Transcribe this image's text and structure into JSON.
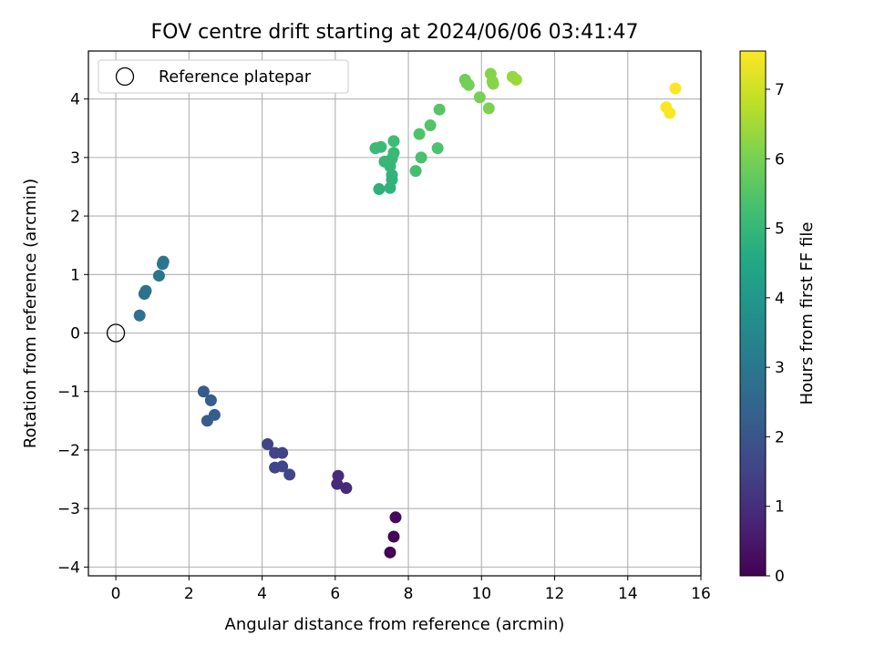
{
  "chart_data": {
    "type": "scatter",
    "title": "FOV centre drift starting at 2024/06/06 03:41:47",
    "xlabel": "Angular distance from reference (arcmin)",
    "ylabel": "Rotation from reference (arcmin)",
    "xlim": [
      -0.75,
      16
    ],
    "ylim": [
      -4.15,
      4.82
    ],
    "xticks": [
      0,
      2,
      4,
      6,
      8,
      10,
      12,
      14,
      16
    ],
    "xtick_labels": [
      "0",
      "2",
      "4",
      "6",
      "8",
      "10",
      "12",
      "14",
      "16"
    ],
    "yticks": [
      -4,
      -3,
      -2,
      -1,
      0,
      1,
      2,
      3,
      4
    ],
    "ytick_labels": [
      "−4",
      "−3",
      "−2",
      "−1",
      "0",
      "1",
      "2",
      "3",
      "4"
    ],
    "grid": true,
    "legend": {
      "location": "upper left",
      "entries": [
        "Reference platepar"
      ]
    },
    "reference_point": {
      "x": 0,
      "y": 0,
      "marker": "open circle"
    },
    "colorbar": {
      "label": "Hours from first FF file",
      "colormap": "viridis",
      "range": [
        0,
        7.55
      ],
      "ticks": [
        0,
        1,
        2,
        3,
        4,
        5,
        6,
        7
      ],
      "tick_labels": [
        "0",
        "1",
        "2",
        "3",
        "4",
        "5",
        "6",
        "7"
      ]
    },
    "points": [
      {
        "x": 7.5,
        "y": -3.75,
        "c": 0.0
      },
      {
        "x": 7.6,
        "y": -3.48,
        "c": 0.1
      },
      {
        "x": 7.65,
        "y": -3.15,
        "c": 0.2
      },
      {
        "x": 6.05,
        "y": -2.58,
        "c": 0.9
      },
      {
        "x": 6.3,
        "y": -2.65,
        "c": 0.9
      },
      {
        "x": 6.08,
        "y": -2.44,
        "c": 0.95
      },
      {
        "x": 4.15,
        "y": -1.9,
        "c": 1.5
      },
      {
        "x": 4.35,
        "y": -2.05,
        "c": 1.5
      },
      {
        "x": 4.55,
        "y": -2.05,
        "c": 1.55
      },
      {
        "x": 4.35,
        "y": -2.3,
        "c": 1.5
      },
      {
        "x": 4.55,
        "y": -2.28,
        "c": 1.6
      },
      {
        "x": 4.75,
        "y": -2.42,
        "c": 1.6
      },
      {
        "x": 2.4,
        "y": -1.0,
        "c": 2.15
      },
      {
        "x": 2.6,
        "y": -1.15,
        "c": 2.2
      },
      {
        "x": 2.5,
        "y": -1.5,
        "c": 2.2
      },
      {
        "x": 2.7,
        "y": -1.4,
        "c": 2.25
      },
      {
        "x": 0.65,
        "y": 0.3,
        "c": 2.8
      },
      {
        "x": 0.78,
        "y": 0.67,
        "c": 2.85
      },
      {
        "x": 0.82,
        "y": 0.72,
        "c": 2.85
      },
      {
        "x": 1.18,
        "y": 0.98,
        "c": 2.9
      },
      {
        "x": 1.28,
        "y": 1.18,
        "c": 2.95
      },
      {
        "x": 1.3,
        "y": 1.22,
        "c": 2.95
      },
      {
        "x": 7.2,
        "y": 2.46,
        "c": 4.8
      },
      {
        "x": 7.5,
        "y": 2.48,
        "c": 4.85
      },
      {
        "x": 7.55,
        "y": 2.62,
        "c": 4.9
      },
      {
        "x": 7.55,
        "y": 2.7,
        "c": 4.9
      },
      {
        "x": 7.5,
        "y": 2.85,
        "c": 4.95
      },
      {
        "x": 7.35,
        "y": 2.93,
        "c": 5.0
      },
      {
        "x": 7.55,
        "y": 2.98,
        "c": 5.0
      },
      {
        "x": 7.6,
        "y": 3.08,
        "c": 5.05
      },
      {
        "x": 7.1,
        "y": 3.16,
        "c": 5.1
      },
      {
        "x": 7.25,
        "y": 3.18,
        "c": 5.1
      },
      {
        "x": 7.6,
        "y": 3.28,
        "c": 5.15
      },
      {
        "x": 8.2,
        "y": 2.77,
        "c": 5.3
      },
      {
        "x": 8.35,
        "y": 3.0,
        "c": 5.35
      },
      {
        "x": 8.8,
        "y": 3.16,
        "c": 5.4
      },
      {
        "x": 8.3,
        "y": 3.4,
        "c": 5.45
      },
      {
        "x": 8.6,
        "y": 3.55,
        "c": 5.5
      },
      {
        "x": 8.85,
        "y": 3.82,
        "c": 5.55
      },
      {
        "x": 9.55,
        "y": 4.33,
        "c": 5.9
      },
      {
        "x": 9.6,
        "y": 4.27,
        "c": 5.9
      },
      {
        "x": 9.65,
        "y": 4.24,
        "c": 5.95
      },
      {
        "x": 9.95,
        "y": 4.03,
        "c": 6.0
      },
      {
        "x": 10.2,
        "y": 3.84,
        "c": 6.05
      },
      {
        "x": 10.25,
        "y": 4.43,
        "c": 6.15
      },
      {
        "x": 10.3,
        "y": 4.3,
        "c": 6.2
      },
      {
        "x": 10.32,
        "y": 4.26,
        "c": 6.2
      },
      {
        "x": 10.85,
        "y": 4.38,
        "c": 6.35
      },
      {
        "x": 10.95,
        "y": 4.33,
        "c": 6.4
      },
      {
        "x": 15.05,
        "y": 3.86,
        "c": 7.5
      },
      {
        "x": 15.15,
        "y": 3.76,
        "c": 7.5
      },
      {
        "x": 15.3,
        "y": 4.18,
        "c": 7.55
      }
    ]
  }
}
